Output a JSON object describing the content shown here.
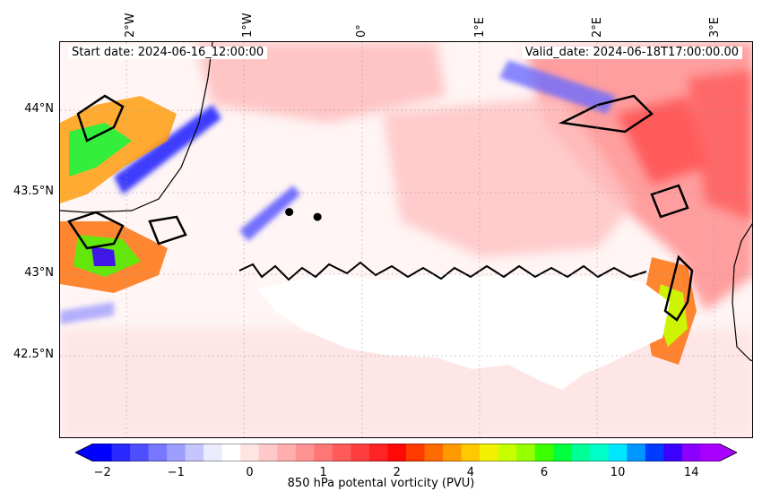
{
  "header": {
    "start_date": "Start date: 2024-06-16_12:00:00",
    "valid_date": "Valid_date: 2024-06-18T17:00:00.00"
  },
  "map": {
    "lon_labels": [
      "2°W",
      "1°W",
      "0°",
      "1°E",
      "2°E",
      "3°E"
    ],
    "lat_labels": [
      "44°N",
      "43.5°N",
      "43°N",
      "42.5°N"
    ],
    "markers": [
      {
        "name": "marker-point-1",
        "lon": -0.62,
        "lat": 43.38
      },
      {
        "name": "marker-point-2",
        "lon": -0.38,
        "lat": 43.35
      }
    ]
  },
  "colorbar": {
    "label": "850 hPa potental vorticity (PVU)",
    "ticks": [
      "−2",
      "−1",
      "0",
      "1",
      "2",
      "4",
      "6",
      "10",
      "14"
    ],
    "colors": [
      "#0000ff",
      "#2828ff",
      "#4f4fff",
      "#7777ff",
      "#9e9eff",
      "#c6c6ff",
      "#ececff",
      "#ffffff",
      "#ffe4e4",
      "#ffc9c9",
      "#ffadad",
      "#ff9292",
      "#ff7676",
      "#ff5b5b",
      "#ff3f3f",
      "#ff2424",
      "#ff0808",
      "#ff3a00",
      "#ff6a00",
      "#ff9900",
      "#ffc800",
      "#f2f200",
      "#c8ff00",
      "#96ff00",
      "#3cff00",
      "#00ff3c",
      "#00ff96",
      "#00ffc8",
      "#00e6ff",
      "#0096ff",
      "#003cff",
      "#3c00ff",
      "#8c00ff",
      "#a800ff"
    ],
    "under_color": "#0000ff",
    "over_color": "#a800ff"
  }
}
